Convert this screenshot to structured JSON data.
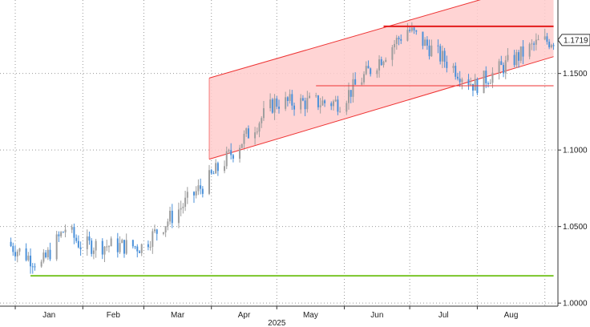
{
  "chart_data": {
    "type": "candlestick",
    "title": "",
    "xlabel": "",
    "ylabel": "",
    "year_label": "2025",
    "x_ticks": [
      "Jan",
      "Feb",
      "Mar",
      "Apr",
      "May",
      "Jun",
      "Jul",
      "Aug"
    ],
    "y_ticks": [
      "1.0000",
      "1.0500",
      "1.1000",
      "1.1500"
    ],
    "ylim": [
      0.998,
      1.198
    ],
    "last_price": "1.1719",
    "last_value": 1.1719,
    "grid": "dotted",
    "colors": {
      "up": "#9e9e9e",
      "down": "#4a90d9",
      "channel_fill": "#ffcccc",
      "channel_line": "#ee3333",
      "resistance": "#e31b1b",
      "support": "#7ac52a",
      "grid": "#999999"
    },
    "months": [
      "Jan",
      "Feb",
      "Mar",
      "Apr",
      "May",
      "Jun",
      "Jul",
      "Aug"
    ],
    "month_end_closes": [
      1.038,
      1.037,
      1.081,
      1.131,
      1.131,
      1.179,
      1.142,
      1.17
    ],
    "annotations": [
      {
        "type": "channel",
        "x_start": "2025-03-31",
        "x_end": "2025-09-05",
        "upper": [
          1.147,
          1.212
        ],
        "lower": [
          1.094,
          1.161
        ],
        "fill": true
      },
      {
        "type": "hline",
        "level": 1.1808,
        "x_start": "2025-06-19",
        "x_end": "2025-09-05",
        "color": "resistance"
      },
      {
        "type": "hline",
        "level": 1.142,
        "x_start": "2025-05-19",
        "x_end": "2025-09-05",
        "color": "channel_line"
      },
      {
        "type": "hline",
        "level": 1.0178,
        "x_start": "2025-01-08",
        "x_end": "2025-09-05",
        "color": "support"
      }
    ]
  }
}
